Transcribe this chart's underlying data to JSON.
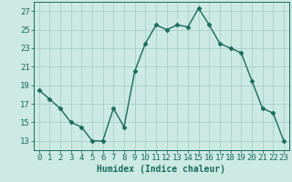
{
  "x": [
    0,
    1,
    2,
    3,
    4,
    5,
    6,
    7,
    8,
    9,
    10,
    11,
    12,
    13,
    14,
    15,
    16,
    17,
    18,
    19,
    20,
    21,
    22,
    23
  ],
  "y": [
    18.5,
    17.5,
    16.5,
    15.0,
    14.5,
    13.0,
    13.0,
    16.5,
    14.5,
    20.5,
    23.5,
    25.5,
    25.0,
    25.5,
    25.3,
    27.3,
    25.5,
    23.5,
    23.0,
    22.5,
    19.5,
    16.5,
    16.0,
    13.0
  ],
  "line_color": "#1a6b5a",
  "marker": "D",
  "marker_size": 2.5,
  "bg_color": "#cce9e4",
  "grid_color": "#aacfc8",
  "xlabel": "Humidex (Indice chaleur)",
  "xlim": [
    -0.5,
    23.5
  ],
  "ylim": [
    12.0,
    28.0
  ],
  "yticks": [
    13,
    15,
    17,
    19,
    21,
    23,
    25,
    27
  ],
  "xticks": [
    0,
    1,
    2,
    3,
    4,
    5,
    6,
    7,
    8,
    9,
    10,
    11,
    12,
    13,
    14,
    15,
    16,
    17,
    18,
    19,
    20,
    21,
    22,
    23
  ],
  "xlabel_fontsize": 7,
  "tick_fontsize": 6.5,
  "axes_color": "#1a6b5a",
  "linewidth": 1.0
}
